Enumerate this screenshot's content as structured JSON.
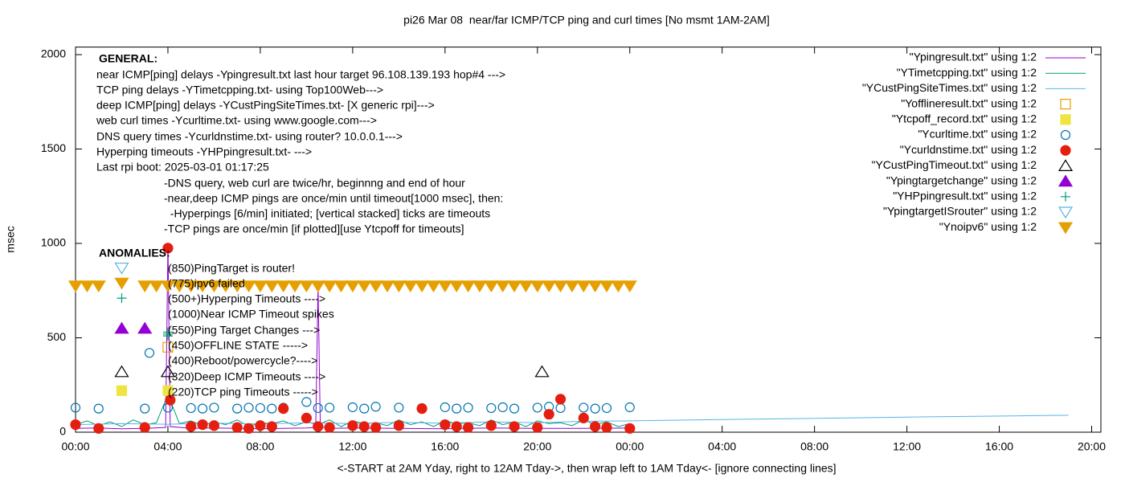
{
  "chart_data": {
    "type": "scatter",
    "title": "pi26 Mar 08  near/far ICMP/TCP ping and curl times [No msmt 1AM-2AM]",
    "x_label": "<-START at 2AM Yday, right to 12AM Tday->, then wrap left to 1AM Tday<- [ignore connecting lines]",
    "y_label": "msec",
    "xlim": [
      0,
      44.4
    ],
    "ylim": [
      0,
      2040
    ],
    "xticks": [
      {
        "value": 0,
        "label": "00:00"
      },
      {
        "value": 4,
        "label": "04:00"
      },
      {
        "value": 8,
        "label": "08:00"
      },
      {
        "value": 12,
        "label": "12:00"
      },
      {
        "value": 16,
        "label": "16:00"
      },
      {
        "value": 20,
        "label": "20:00"
      },
      {
        "value": 24,
        "label": "00:00"
      },
      {
        "value": 28,
        "label": "04:00"
      },
      {
        "value": 32,
        "label": "08:00"
      },
      {
        "value": 36,
        "label": "12:00"
      },
      {
        "value": 40,
        "label": "16:00"
      },
      {
        "value": 44,
        "label": "20:00"
      }
    ],
    "yticks": [
      0,
      500,
      1000,
      1500,
      2000
    ],
    "annotations": [
      "GENERAL:",
      "near ICMP[ping] delays -Ypingresult.txt last hour target 96.108.139.193 hop#4 --->",
      "TCP ping delays -YTimetcpping.txt- using Top100Web--->",
      "deep ICMP[ping] delays -YCustPingSiteTimes.txt- [X generic rpi]--->",
      "web curl times -Ycurltime.txt- using www.google.com--->",
      "DNS query times -Ycurldnstime.txt- using router? 10.0.0.1--->",
      "Hyperping timeouts -YHPpingresult.txt- --->",
      "Last rpi boot: 2025-03-01 01:17:25",
      "-DNS query, web curl are twice/hr, beginnng and end of hour",
      "-near,deep ICMP pings are once/min until timeout[1000 msec], then:",
      "  -Hyperpings [6/min] initiated; [vertical stacked] ticks are timeouts",
      "-TCP pings are once/min [if plotted][use Ytcpoff for timeouts]",
      "ANOMALIES:",
      "(850)PingTarget is router!",
      "(775)ipv6 failed",
      "(500+)Hyperping Timeouts ---->",
      "(1000)Near ICMP Timeout spikes",
      "(550)Ping Target Changes --->",
      "(450)OFFLINE STATE ----->",
      "(400)Reboot/powercycle?---->",
      "(320)Deep ICMP Timeouts ---->",
      "(220)TCP ping Timeouts ----->"
    ],
    "series": [
      {
        "name": "\"Ypingresult.txt\" using 1:2",
        "color": "#9400d3",
        "marker": "line",
        "x": [
          0,
          1,
          2,
          3,
          3.9,
          4,
          4.1,
          5,
          6,
          7,
          8,
          9,
          10,
          10.4,
          10.5,
          10.6,
          11,
          12,
          14,
          16,
          18,
          20,
          22,
          24
        ],
        "values": [
          20,
          22,
          18,
          20,
          25,
          1000,
          30,
          20,
          22,
          20,
          18,
          20,
          22,
          25,
          780,
          30,
          20,
          22,
          20,
          18,
          22,
          20,
          20,
          22
        ]
      },
      {
        "name": "\"YTimetcpping.txt\" using 1:2",
        "color": "#009e73",
        "marker": "line",
        "x": [
          0,
          0.5,
          1,
          1.5,
          2,
          2.5,
          3,
          3.5,
          4,
          4.5,
          5,
          5.5,
          6,
          6.5,
          7,
          7.5,
          8,
          8.5,
          9,
          9.5,
          10,
          10.5,
          11,
          11.5,
          12,
          12.5,
          13,
          13.5,
          14,
          14.5,
          15,
          15.5,
          16,
          16.5,
          17,
          17.5,
          18,
          18.5,
          19,
          19.5,
          20,
          20.5,
          21,
          21.5,
          22,
          22.5,
          23,
          23.5,
          24
        ],
        "values": [
          40,
          60,
          35,
          55,
          30,
          65,
          40,
          50,
          200,
          45,
          60,
          35,
          55,
          40,
          65,
          30,
          50,
          45,
          60,
          35,
          55,
          40,
          65,
          30,
          60,
          45,
          50,
          35,
          65,
          40,
          55,
          30,
          60,
          45,
          50,
          35,
          65,
          40,
          55,
          30,
          60,
          45,
          50,
          35,
          65,
          40,
          55,
          30,
          45
        ]
      },
      {
        "name": "\"YCustPingSiteTimes.txt\" using 1:2",
        "color": "#56b4e9",
        "marker": "line",
        "x": [
          0,
          2,
          4,
          6,
          8,
          10,
          12,
          14,
          16,
          18,
          20,
          22,
          24,
          30,
          36,
          43
        ],
        "values": [
          40,
          45,
          42,
          48,
          44,
          50,
          46,
          52,
          48,
          55,
          50,
          58,
          60,
          70,
          80,
          90
        ]
      },
      {
        "name": "\"Yofflineresult.txt\" using 1:2",
        "color": "#e69f00",
        "marker": "osq",
        "x": [
          4
        ],
        "values": [
          450
        ]
      },
      {
        "name": "\"Ytcpoff_record.txt\" using 1:2",
        "color": "#f0e442",
        "marker": "fsq",
        "x": [
          2,
          4
        ],
        "values": [
          220,
          220
        ]
      },
      {
        "name": "\"Ycurltime.txt\" using 1:2",
        "color": "#0072b2",
        "marker": "ocirc",
        "x": [
          0,
          1,
          3,
          3.2,
          4,
          5,
          5.5,
          6,
          7,
          7.5,
          8,
          8.5,
          9,
          10,
          10.5,
          11,
          12,
          12.5,
          13,
          14,
          15,
          16,
          16.5,
          17,
          18,
          18.5,
          19,
          20,
          20.5,
          21,
          22,
          22.5,
          23,
          24
        ],
        "values": [
          130,
          125,
          125,
          420,
          130,
          128,
          125,
          130,
          125,
          130,
          128,
          125,
          130,
          160,
          128,
          130,
          132,
          125,
          135,
          130,
          128,
          132,
          125,
          130,
          128,
          132,
          125,
          130,
          135,
          128,
          130,
          125,
          128,
          132
        ]
      },
      {
        "name": "\"Ycurldnstime.txt\" using 1:2",
        "color": "#e51e10",
        "marker": "fcirc",
        "x": [
          0,
          1,
          3,
          4,
          4.1,
          5,
          5.5,
          6,
          7,
          7.5,
          8,
          8.5,
          9,
          10,
          10.5,
          11,
          12,
          12.5,
          13,
          14,
          15,
          16,
          16.5,
          17,
          18,
          19,
          20,
          20.5,
          21,
          22,
          22.5,
          23,
          24
        ],
        "values": [
          40,
          20,
          25,
          975,
          170,
          30,
          40,
          35,
          25,
          20,
          35,
          30,
          125,
          75,
          30,
          25,
          35,
          30,
          25,
          35,
          125,
          40,
          30,
          25,
          35,
          30,
          25,
          95,
          175,
          75,
          30,
          25,
          20
        ]
      },
      {
        "name": "\"YCustPingTimeout.txt\" using 1:2",
        "color": "#000000",
        "marker": "otri",
        "x": [
          2,
          4,
          20.2
        ],
        "values": [
          320,
          320,
          320
        ]
      },
      {
        "name": "\"Ypingtargetchange\" using 1:2",
        "color": "#9400d3",
        "marker": "ftri",
        "x": [
          2,
          3
        ],
        "values": [
          550,
          550
        ]
      },
      {
        "name": "\"YHPpingresult.txt\" using 1:2",
        "color": "#009e73",
        "marker": "plus",
        "x": [
          2,
          4,
          4,
          4
        ],
        "values": [
          710,
          530,
          520,
          510
        ]
      },
      {
        "name": "\"YpingtargetISrouter\" using 1:2",
        "color": "#56b4e9",
        "marker": "odtri",
        "x": [
          2
        ],
        "values": [
          870
        ]
      },
      {
        "name": "\"Ynoipv6\" using 1:2",
        "color": "#e69f00",
        "marker": "fdtri",
        "x": [
          0,
          0.5,
          1,
          2,
          3,
          3.5,
          4,
          4.5,
          5,
          5.5,
          6,
          6.5,
          7,
          7.5,
          8,
          8.5,
          9,
          9.5,
          10,
          10.5,
          11,
          11.5,
          12,
          12.5,
          13,
          13.5,
          14,
          14.5,
          15,
          15.5,
          16,
          16.5,
          17,
          17.5,
          18,
          18.5,
          19,
          19.5,
          20,
          20.5,
          21,
          21.5,
          22,
          22.5,
          23,
          23.5,
          24
        ],
        "values": [
          775,
          775,
          775,
          790,
          775,
          775,
          775,
          775,
          775,
          775,
          775,
          775,
          775,
          775,
          775,
          775,
          775,
          775,
          775,
          775,
          775,
          775,
          775,
          775,
          775,
          775,
          775,
          775,
          775,
          775,
          775,
          775,
          775,
          775,
          775,
          775,
          775,
          775,
          775,
          775,
          775,
          775,
          775,
          775,
          775,
          775,
          775
        ]
      }
    ]
  }
}
